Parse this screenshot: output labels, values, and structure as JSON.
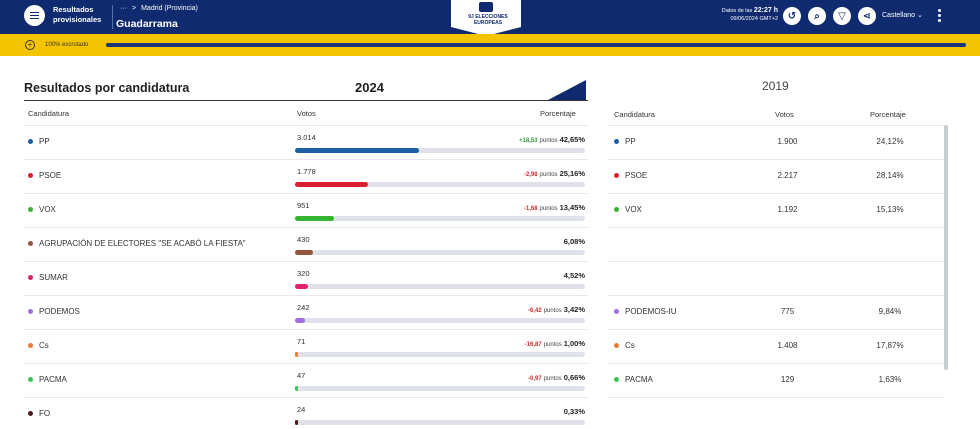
{
  "header": {
    "app_title": "Resultados provisionales",
    "breadcrumb_more": "···",
    "breadcrumb_sep": ">",
    "breadcrumb_parent": "Madrid (Provincia)",
    "place": "Guadarrama",
    "logo_text": "9J ELECCIONES EUROPEAS",
    "data_label": "Datos de las",
    "data_time": "22:27 h",
    "data_date": "09/06/2024 GMT+2",
    "language": "Castellano",
    "icons": [
      "history-icon",
      "search-icon",
      "filter-icon",
      "share-icon"
    ]
  },
  "progress": {
    "label": "100% escrutado",
    "value_percent": 100
  },
  "section": {
    "title": "Resultados por candidatura",
    "year_current": "2024",
    "year_previous": "2019"
  },
  "columns_2024": {
    "party": "Candidatura",
    "votes": "Votos",
    "pct": "Porcentaje"
  },
  "columns_2019": {
    "party": "Candidatura",
    "votes": "Votos",
    "pct": "Porcentaje"
  },
  "points_label": "puntos",
  "rows": [
    {
      "party": "PP",
      "color": "#1d5fa6",
      "votes": "3.014",
      "pct_value": 42.65,
      "change": "+18,53",
      "dir": "up",
      "pct": "42,65%",
      "party19": "PP",
      "color19": "#1d5fa6",
      "votes19": "1.900",
      "pct19": "24,12%"
    },
    {
      "party": "PSOE",
      "color": "#d9202f",
      "votes": "1.778",
      "pct_value": 25.16,
      "change": "-2,98",
      "dir": "down",
      "pct": "25,16%",
      "party19": "PSOE",
      "color19": "#d9202f",
      "votes19": "2.217",
      "pct19": "28,14%"
    },
    {
      "party": "VOX",
      "color": "#35b52f",
      "votes": "951",
      "pct_value": 13.45,
      "change": "-1,68",
      "dir": "down",
      "pct": "13,45%",
      "party19": "VOX",
      "color19": "#35b52f",
      "votes19": "1.192",
      "pct19": "15,13%"
    },
    {
      "party": "AGRUPACIÓN DE ELECTORES \"SE ACABÓ LA FIESTA\"",
      "color": "#94563a",
      "votes": "430",
      "pct_value": 6.08,
      "change": "",
      "dir": "",
      "pct": "6,08%",
      "party19": "",
      "color19": "",
      "votes19": "",
      "pct19": ""
    },
    {
      "party": "SUMAR",
      "color": "#e2236a",
      "votes": "320",
      "pct_value": 4.52,
      "change": "",
      "dir": "",
      "pct": "4,52%",
      "party19": "",
      "color19": "",
      "votes19": "",
      "pct19": ""
    },
    {
      "party": "PODEMOS",
      "color": "#a56de0",
      "votes": "242",
      "pct_value": 3.42,
      "change": "-6,42",
      "dir": "down",
      "pct": "3,42%",
      "party19": "PODEMOS-IU",
      "color19": "#a56de0",
      "votes19": "775",
      "pct19": "9,84%"
    },
    {
      "party": "Cs",
      "color": "#f07a32",
      "votes": "71",
      "pct_value": 1.0,
      "change": "-16,87",
      "dir": "down",
      "pct": "1,00%",
      "party19": "Cs",
      "color19": "#f07a32",
      "votes19": "1.408",
      "pct19": "17,87%"
    },
    {
      "party": "PACMA",
      "color": "#3cc45a",
      "votes": "47",
      "pct_value": 0.66,
      "change": "-0,97",
      "dir": "down",
      "pct": "0,66%",
      "party19": "PACMA",
      "color19": "#3cc45a",
      "votes19": "129",
      "pct19": "1,63%"
    },
    {
      "party": "FO",
      "color": "#4a1a1a",
      "votes": "24",
      "pct_value": 0.33,
      "change": "",
      "dir": "",
      "pct": "0,33%",
      "party19": "",
      "color19": "",
      "votes19": "",
      "pct19": ""
    }
  ]
}
